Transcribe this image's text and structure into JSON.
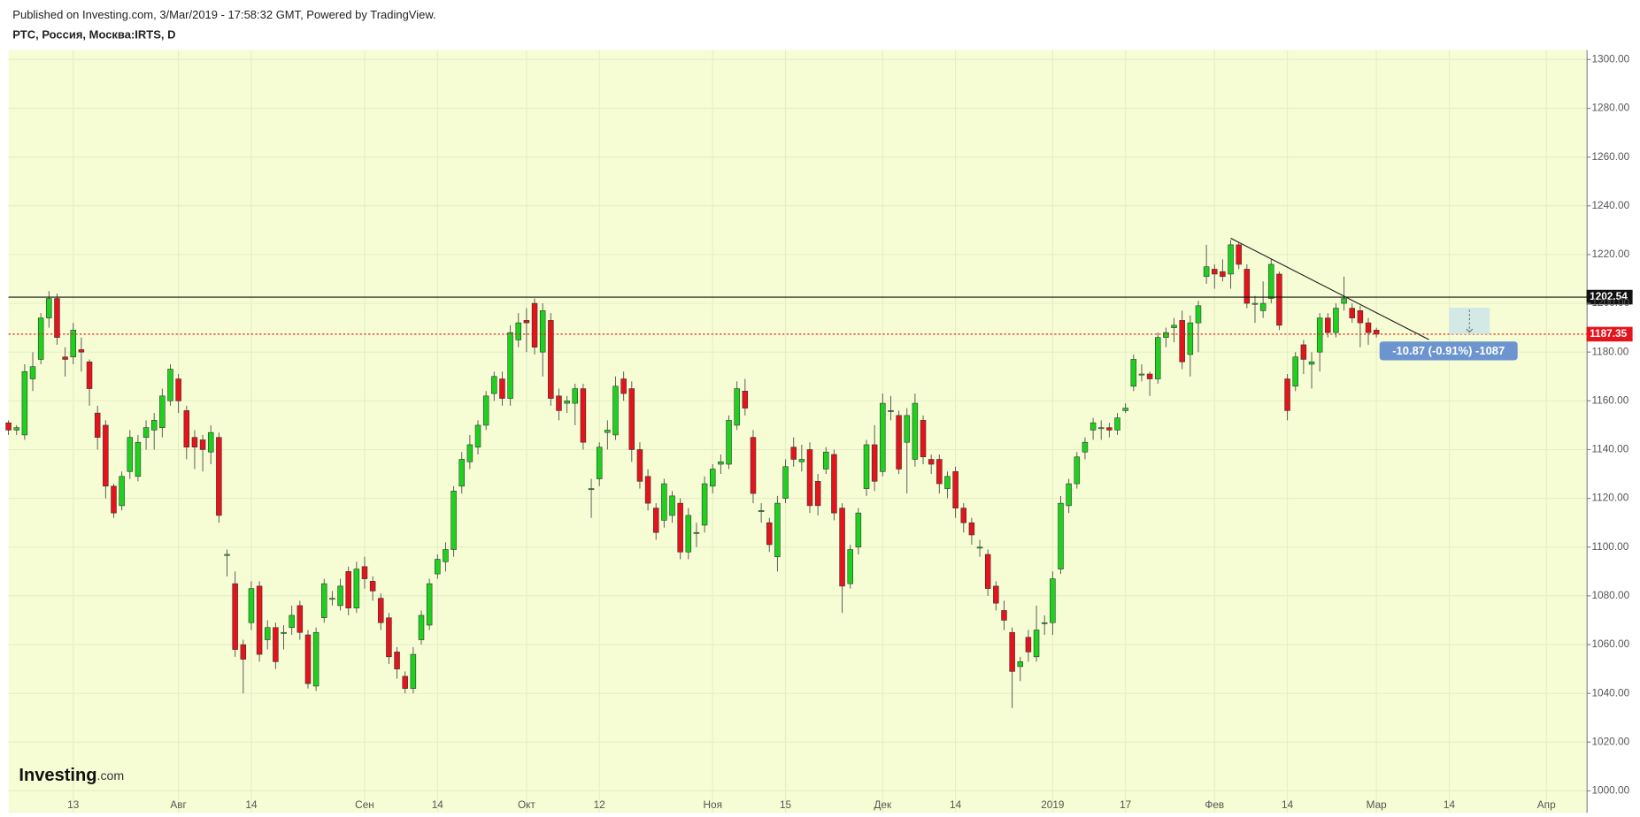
{
  "header": {
    "published": "Published on Investing.com, 3/Mar/2019 - 17:58:32 GMT, Powered by TradingView.",
    "symbol": "РТС, Россия, Москва:IRTS, D"
  },
  "logo": {
    "brand": "Investing",
    "suffix": ".com"
  },
  "chart_data": {
    "type": "candlestick",
    "up_color": "#1fd11f",
    "down_color": "#e5131b",
    "grid": true,
    "categories": [
      null,
      null,
      null,
      null,
      null,
      null,
      null,
      null,
      "13",
      null,
      null,
      null,
      null,
      null,
      null,
      null,
      null,
      null,
      null,
      null,
      null,
      "Авг",
      null,
      null,
      null,
      null,
      null,
      null,
      null,
      null,
      "14",
      null,
      null,
      null,
      null,
      null,
      null,
      null,
      null,
      null,
      null,
      null,
      null,
      null,
      "Сен",
      null,
      null,
      null,
      null,
      null,
      null,
      null,
      null,
      "14",
      null,
      null,
      null,
      null,
      null,
      null,
      null,
      null,
      null,
      null,
      "Окт",
      null,
      null,
      null,
      null,
      null,
      null,
      null,
      null,
      "12",
      null,
      null,
      null,
      null,
      null,
      null,
      null,
      null,
      null,
      null,
      null,
      null,
      null,
      "Ноя",
      null,
      null,
      null,
      null,
      null,
      null,
      null,
      null,
      "15",
      null,
      null,
      null,
      null,
      null,
      null,
      null,
      null,
      null,
      null,
      null,
      "Дек",
      null,
      null,
      null,
      null,
      null,
      null,
      null,
      null,
      "14",
      null,
      null,
      null,
      null,
      null,
      null,
      null,
      null,
      null,
      null,
      null,
      "2019",
      null,
      null,
      null,
      null,
      null,
      null,
      null,
      null,
      "17",
      null,
      null,
      null,
      null,
      null,
      null,
      null,
      null,
      null,
      null,
      "Фев",
      null,
      null,
      null,
      null,
      null,
      null,
      null,
      null,
      "14",
      null,
      null,
      null,
      null,
      null,
      null,
      null,
      null,
      null,
      null,
      "Мар",
      null,
      null,
      null,
      null,
      null,
      null,
      null,
      null,
      "14",
      null,
      null,
      null,
      null,
      null,
      null,
      null,
      null,
      null,
      null,
      null,
      "Апр",
      null,
      null,
      null,
      null
    ],
    "open": [
      1151,
      1148,
      1146,
      1169,
      1177,
      1194,
      1202,
      1178,
      1178,
      1181,
      1176,
      1155,
      1150,
      1125,
      1117,
      1131,
      1129,
      1145,
      1148,
      1149,
      1160,
      1169,
      1156,
      1145,
      1144,
      1139,
      1145,
      1097,
      1085,
      1060,
      1069,
      1084,
      1062,
      1067,
      1065,
      1067,
      1076,
      1064,
      1043,
      1071,
      1079,
      1076,
      1090,
      1075,
      1092,
      1086,
      1079,
      1071,
      1057,
      1047,
      1042,
      1062,
      1068,
      1089,
      1094,
      1099,
      1125,
      1135,
      1141,
      1150,
      1163,
      1169,
      1161,
      1185,
      1193,
      1200,
      1180,
      1193,
      1162,
      1159,
      1159,
      1165,
      1124,
      1128,
      1147,
      1146,
      1169,
      1165,
      1140,
      1129,
      1116,
      1111,
      1113,
      1118,
      1098,
      1106,
      1109,
      1125,
      1134,
      1134,
      1150,
      1164,
      1145,
      1115,
      1110,
      1096,
      1120,
      1141,
      1135,
      1140,
      1127,
      1132,
      1138,
      1116,
      1085,
      1100,
      1124,
      1142,
      1131,
      1156,
      1154,
      1143,
      1136,
      1152,
      1136,
      1136,
      1124,
      1131,
      1116,
      1110,
      1100,
      1097,
      1084,
      1074,
      1065,
      1051,
      1063,
      1055,
      1069,
      1069,
      1091,
      1117,
      1126,
      1139,
      1148,
      1149,
      1149,
      1148,
      1156,
      1166,
      1171,
      1171,
      1169,
      1186,
      1190,
      1193,
      1179,
      1192,
      1211,
      1214,
      1213,
      1212,
      1224,
      1214,
      1200,
      1197,
      1202,
      1212,
      1169,
      1166,
      1183,
      1175,
      1180,
      1194,
      1188,
      1200,
      1198,
      1197,
      1192,
      1189,
      null,
      null,
      null,
      null,
      null,
      null,
      null,
      null,
      null,
      null,
      null,
      null,
      null,
      null,
      null,
      null,
      null,
      null,
      null,
      null,
      null,
      null,
      null,
      null,
      null
    ],
    "high": [
      1152,
      1150,
      1175,
      1180,
      1196,
      1205,
      1204,
      1182,
      1192,
      1186,
      1177,
      1158,
      1152,
      1126,
      1131,
      1148,
      1146,
      1152,
      1155,
      1165,
      1175,
      1171,
      1158,
      1148,
      1146,
      1150,
      1147,
      1099,
      1090,
      1062,
      1086,
      1086,
      1070,
      1069,
      1068,
      1076,
      1078,
      1066,
      1067,
      1087,
      1082,
      1087,
      1092,
      1094,
      1096,
      1088,
      1081,
      1073,
      1059,
      1049,
      1059,
      1074,
      1087,
      1097,
      1102,
      1125,
      1139,
      1146,
      1152,
      1164,
      1172,
      1172,
      1191,
      1196,
      1198,
      1202,
      1200,
      1196,
      1165,
      1162,
      1167,
      1167,
      1128,
      1143,
      1152,
      1170,
      1172,
      1168,
      1143,
      1132,
      1118,
      1128,
      1123,
      1120,
      1116,
      1110,
      1129,
      1134,
      1138,
      1154,
      1168,
      1169,
      1148,
      1118,
      1112,
      1121,
      1136,
      1145,
      1142,
      1143,
      1130,
      1141,
      1140,
      1118,
      1101,
      1116,
      1144,
      1150,
      1163,
      1162,
      1156,
      1157,
      1163,
      1154,
      1138,
      1138,
      1131,
      1133,
      1118,
      1112,
      1103,
      1099,
      1086,
      1078,
      1067,
      1055,
      1066,
      1076,
      1072,
      1090,
      1121,
      1128,
      1139,
      1145,
      1153,
      1152,
      1151,
      1155,
      1159,
      1179,
      1175,
      1172,
      1188,
      1190,
      1194,
      1197,
      1195,
      1201,
      1224,
      1216,
      1218,
      1226,
      1225,
      1216,
      1203,
      1209,
      1218,
      1213,
      1171,
      1180,
      1185,
      1180,
      1196,
      1196,
      1200,
      1211,
      1200,
      1199,
      1194,
      1190,
      null,
      null,
      null,
      null,
      null,
      null,
      null,
      null,
      null,
      null,
      null,
      null,
      null,
      null,
      null,
      null,
      null,
      null,
      null,
      null,
      null,
      null,
      null,
      null,
      null
    ],
    "low": [
      1146,
      1146,
      1144,
      1164,
      1175,
      1190,
      1183,
      1170,
      1175,
      1172,
      1158,
      1140,
      1120,
      1112,
      1115,
      1128,
      1127,
      1140,
      1140,
      1145,
      1158,
      1155,
      1136,
      1132,
      1131,
      1134,
      1110,
      1088,
      1055,
      1040,
      1066,
      1053,
      1058,
      1050,
      1058,
      1064,
      1062,
      1042,
      1041,
      1069,
      1076,
      1074,
      1072,
      1073,
      1083,
      1078,
      1066,
      1052,
      1046,
      1040,
      1040,
      1060,
      1066,
      1087,
      1090,
      1096,
      1122,
      1132,
      1138,
      1148,
      1160,
      1158,
      1158,
      1182,
      1180,
      1179,
      1170,
      1158,
      1152,
      1155,
      1150,
      1140,
      1112,
      1125,
      1140,
      1144,
      1160,
      1135,
      1124,
      1115,
      1103,
      1108,
      1110,
      1095,
      1095,
      1100,
      1106,
      1122,
      1130,
      1132,
      1148,
      1154,
      1118,
      1110,
      1098,
      1090,
      1118,
      1133,
      1131,
      1114,
      1113,
      1130,
      1111,
      1073,
      1083,
      1097,
      1121,
      1123,
      1129,
      1152,
      1130,
      1122,
      1133,
      1134,
      1130,
      1122,
      1120,
      1112,
      1106,
      1101,
      1096,
      1080,
      1074,
      1066,
      1034,
      1045,
      1053,
      1053,
      1064,
      1064,
      1089,
      1114,
      1124,
      1136,
      1144,
      1144,
      1145,
      1146,
      1155,
      1164,
      1168,
      1162,
      1167,
      1182,
      1184,
      1173,
      1170,
      1180,
      1208,
      1206,
      1209,
      1206,
      1214,
      1198,
      1192,
      1194,
      1200,
      1189,
      1152,
      1164,
      1171,
      1165,
      1172,
      1186,
      1186,
      1197,
      1192,
      1182,
      1183,
      1186,
      null,
      null,
      null,
      null,
      null,
      null,
      null,
      null,
      null,
      null,
      null,
      null,
      null,
      null,
      null,
      null,
      null,
      null,
      null,
      null,
      null,
      null,
      null,
      null,
      null
    ],
    "close": [
      1148,
      1149,
      1172,
      1174,
      1194,
      1202,
      1186,
      1177,
      1189,
      1180,
      1165,
      1145,
      1125,
      1114,
      1129,
      1145,
      1143,
      1149,
      1152,
      1162,
      1173,
      1160,
      1141,
      1141,
      1140,
      1147,
      1113,
      1097,
      1058,
      1054,
      1083,
      1056,
      1067,
      1053,
      1065,
      1072,
      1065,
      1044,
      1065,
      1085,
      1079,
      1084,
      1075,
      1091,
      1087,
      1082,
      1069,
      1055,
      1050,
      1042,
      1056,
      1072,
      1085,
      1095,
      1099,
      1123,
      1136,
      1142,
      1150,
      1162,
      1170,
      1161,
      1188,
      1192,
      1192,
      1182,
      1197,
      1161,
      1156,
      1160,
      1165,
      1143,
      1124,
      1141,
      1148,
      1166,
      1163,
      1140,
      1127,
      1118,
      1106,
      1126,
      1121,
      1098,
      1113,
      1106,
      1126,
      1132,
      1135,
      1152,
      1165,
      1157,
      1122,
      1115,
      1101,
      1118,
      1133,
      1136,
      1136,
      1117,
      1117,
      1139,
      1114,
      1084,
      1099,
      1114,
      1142,
      1127,
      1159,
      1156,
      1132,
      1154,
      1159,
      1137,
      1134,
      1126,
      1129,
      1116,
      1110,
      1105,
      1100,
      1083,
      1077,
      1070,
      1049,
      1053,
      1057,
      1066,
      1069,
      1087,
      1118,
      1126,
      1137,
      1143,
      1151,
      1149,
      1148,
      1153,
      1157,
      1177,
      1171,
      1169,
      1186,
      1188,
      1191,
      1176,
      1192,
      1199,
      1215,
      1212,
      1211,
      1224,
      1216,
      1200,
      1200,
      1200,
      1216,
      1191,
      1156,
      1178,
      1177,
      1176,
      1194,
      1188,
      1198,
      1202,
      1194,
      1192,
      1188,
      1187.35,
      null,
      null,
      null,
      null,
      null,
      null,
      null,
      null,
      null,
      null,
      null,
      null,
      null,
      null,
      null,
      null,
      null,
      null,
      null,
      null,
      null,
      null,
      null,
      null,
      null
    ],
    "ylim": [
      1000,
      1300
    ],
    "yticks": [
      {
        "value": 1000,
        "label": "1000.00"
      },
      {
        "value": 1020,
        "label": "1020.00"
      },
      {
        "value": 1040,
        "label": "1040.00"
      },
      {
        "value": 1060,
        "label": "1060.00"
      },
      {
        "value": 1080,
        "label": "1080.00"
      },
      {
        "value": 1100,
        "label": "1100.00"
      },
      {
        "value": 1120,
        "label": "1120.00"
      },
      {
        "value": 1140,
        "label": "1140.00"
      },
      {
        "value": 1160,
        "label": "1160.00"
      },
      {
        "value": 1180,
        "label": "1180.00"
      },
      {
        "value": 1200,
        "label": "1200.00"
      },
      {
        "value": 1220,
        "label": "1220.00"
      },
      {
        "value": 1240,
        "label": "1240.00"
      },
      {
        "value": 1260,
        "label": "1260.00"
      },
      {
        "value": 1280,
        "label": "1280.00"
      },
      {
        "value": 1300,
        "label": "1300.00"
      }
    ],
    "horizontal_line": 1202.54,
    "trend_line": {
      "x": [
        151,
        175.5
      ],
      "y": [
        1226.7,
        1185.1
      ]
    },
    "measure": {
      "from": 1198.22,
      "to": 1187.35,
      "x": [
        178,
        183
      ],
      "label": "-10.87 (-0.91%) -1087"
    }
  }
}
